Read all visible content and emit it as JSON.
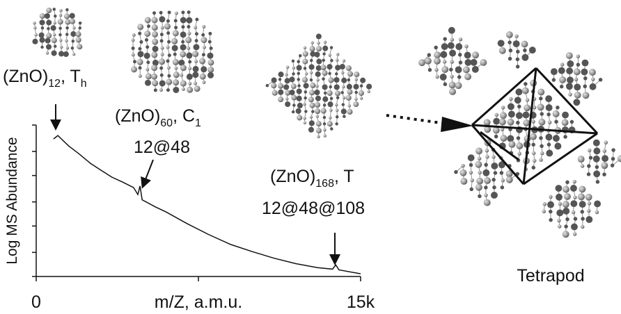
{
  "chart_data": {
    "type": "line",
    "x_label": "m/Z, a.m.u.",
    "y_label": "Log MS Abundance",
    "xlim": [
      0,
      15000
    ],
    "xticks": [
      0,
      {
        "value": 15000,
        "label": "15k"
      }
    ],
    "xminor_ticks": [
      7500
    ],
    "ylim": [
      1,
      1000
    ],
    "ylog": true,
    "yminor_ticks": [
      1,
      3,
      10,
      30,
      100,
      300,
      1000
    ],
    "color": "#111111",
    "x": [
      800,
      1000,
      1500,
      2000,
      2500,
      3000,
      3500,
      4000,
      4500,
      4700,
      4800,
      4900,
      5500,
      6000,
      7000,
      8000,
      9000,
      10000,
      11000,
      12000,
      13000,
      13700,
      13850,
      14000,
      15000
    ],
    "values": [
      530,
      620,
      385,
      265,
      175,
      127,
      93,
      74,
      58,
      42,
      62,
      33,
      24,
      19,
      11,
      6.7,
      4.3,
      3.1,
      2.3,
      1.8,
      1.5,
      1.4,
      1.7,
      1.35,
      1.13
    ],
    "annotations": [
      {
        "label": [
          "(ZnO)",
          "12",
          ", T",
          "h"
        ]
      },
      {
        "label": [
          "(ZnO)",
          "60",
          ", C",
          "1"
        ],
        "shell": "12@48"
      },
      {
        "label": [
          "(ZnO)",
          "168",
          ", T"
        ],
        "shell": "12@48@108"
      }
    ],
    "structure_label": "Tetrapod"
  }
}
